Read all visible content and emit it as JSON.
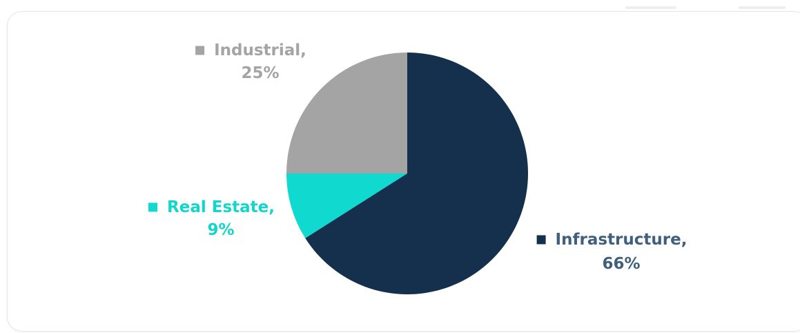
{
  "chart_data": {
    "type": "pie",
    "title": "",
    "slices": [
      {
        "label": "Infrastructure",
        "value": 66,
        "color": "#15304d",
        "label_color": "#3f5f7d"
      },
      {
        "label": "Real Estate",
        "value": 9,
        "color": "#10d9d0",
        "label_color": "#12d6cc"
      },
      {
        "label": "Industrial",
        "value": 25,
        "color": "#a4a4a4",
        "label_color": "#a4a4a4"
      }
    ],
    "value_format": "{value}%",
    "start_angle_deg": 0,
    "direction": "clockwise",
    "legend": "none",
    "data_labels": "outside with legend key"
  }
}
